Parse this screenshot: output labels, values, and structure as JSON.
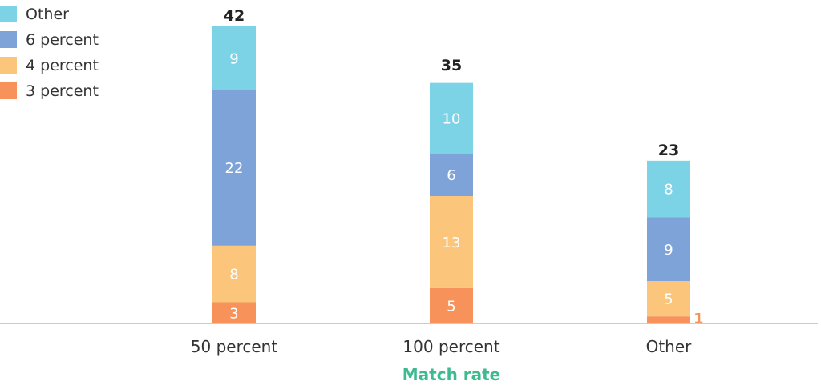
{
  "chart_data": {
    "type": "bar",
    "stacked": true,
    "categories": [
      "50 percent",
      "100 percent",
      "Other"
    ],
    "series": [
      {
        "name": "3 percent",
        "color": "#F7935A",
        "values": [
          3,
          5,
          1
        ]
      },
      {
        "name": "4 percent",
        "color": "#FBC57B",
        "values": [
          8,
          13,
          5
        ]
      },
      {
        "name": "6 percent",
        "color": "#7DA3D8",
        "values": [
          22,
          6,
          9
        ]
      },
      {
        "name": "Other",
        "color": "#7DD3E6",
        "values": [
          9,
          10,
          8
        ]
      }
    ],
    "totals": [
      42,
      35,
      23
    ],
    "xlabel": "Match rate",
    "xlabel_color": "#3DBB8F",
    "ylabel": "",
    "ylim": [
      0,
      42
    ],
    "grid": false,
    "legend": {
      "position": "top-left",
      "order": [
        "Other",
        "6 percent",
        "4 percent",
        "3 percent"
      ]
    }
  }
}
